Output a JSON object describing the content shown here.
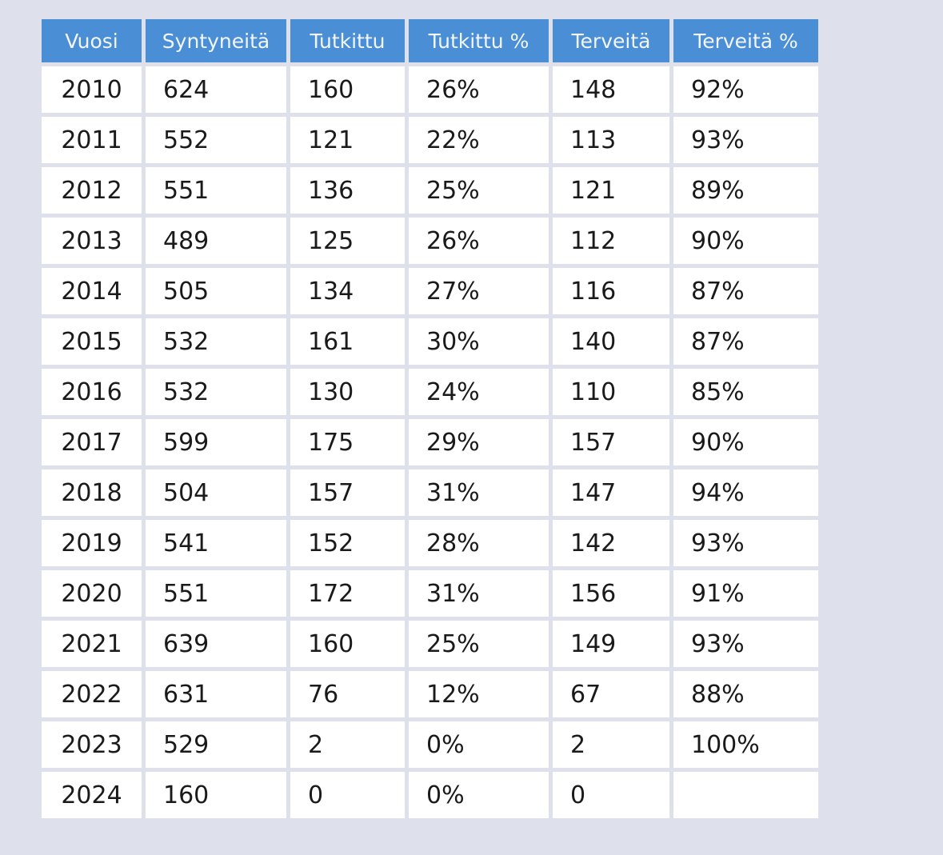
{
  "colors": {
    "page_background": "#dee1ec",
    "header_background": "#4a8ed5",
    "header_text": "#f2f6fc",
    "cell_background": "#ffffff",
    "cell_text": "#1a1a1a"
  },
  "chart_data": {
    "type": "table",
    "columns": [
      "Vuosi",
      "Syntyneitä",
      "Tutkittu",
      "Tutkittu %",
      "Terveitä",
      "Terveitä %"
    ],
    "rows": [
      [
        "2010",
        "624",
        "160",
        "26%",
        "148",
        "92%"
      ],
      [
        "2011",
        "552",
        "121",
        "22%",
        "113",
        "93%"
      ],
      [
        "2012",
        "551",
        "136",
        "25%",
        "121",
        "89%"
      ],
      [
        "2013",
        "489",
        "125",
        "26%",
        "112",
        "90%"
      ],
      [
        "2014",
        "505",
        "134",
        "27%",
        "116",
        "87%"
      ],
      [
        "2015",
        "532",
        "161",
        "30%",
        "140",
        "87%"
      ],
      [
        "2016",
        "532",
        "130",
        "24%",
        "110",
        "85%"
      ],
      [
        "2017",
        "599",
        "175",
        "29%",
        "157",
        "90%"
      ],
      [
        "2018",
        "504",
        "157",
        "31%",
        "147",
        "94%"
      ],
      [
        "2019",
        "541",
        "152",
        "28%",
        "142",
        "93%"
      ],
      [
        "2020",
        "551",
        "172",
        "31%",
        "156",
        "91%"
      ],
      [
        "2021",
        "639",
        "160",
        "25%",
        "149",
        "93%"
      ],
      [
        "2022",
        "631",
        "76",
        "12%",
        "67",
        "88%"
      ],
      [
        "2023",
        "529",
        "2",
        "0%",
        "2",
        "100%"
      ],
      [
        "2024",
        "160",
        "0",
        "0%",
        "0",
        ""
      ]
    ]
  }
}
